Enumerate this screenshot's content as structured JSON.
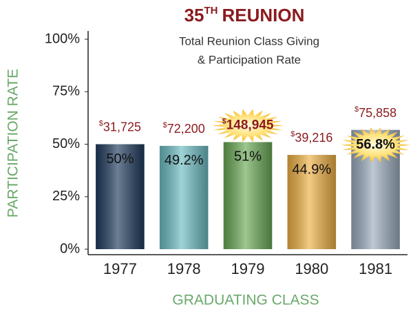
{
  "chart_data": {
    "type": "bar",
    "title_number": "35",
    "title_ordinal": "TH",
    "title_text": "REUNION",
    "subtitle": [
      "Total Reunion Class Giving",
      "& Participation Rate"
    ],
    "y_label": "PARTICIPATION RATE",
    "x_label": "GRADUATING CLASS",
    "categories": [
      "1977",
      "1978",
      "1979",
      "1980",
      "1981"
    ],
    "values": [
      50,
      49.2,
      51,
      44.9,
      56.8
    ],
    "value_labels": [
      "50%",
      "49.2%",
      "51%",
      "44.9%",
      "56.8%"
    ],
    "colors": [
      "#1e3a5c",
      "#6cbcc2",
      "#6aa955",
      "#eeb044",
      "#9aabbd"
    ],
    "giving": {
      "prefix": "$",
      "values": [
        31725,
        72200,
        148945,
        39216,
        75858
      ],
      "value_labels": [
        "31,725",
        "72,200",
        "148,945",
        "39,216",
        "75,858"
      ]
    },
    "highlight_giving": [
      2
    ],
    "highlight_rate": [
      4
    ],
    "ylim": [
      0,
      100
    ],
    "yticks": [
      {
        "value": 0,
        "label": "0%"
      },
      {
        "value": 25,
        "label": "25%"
      },
      {
        "value": 50,
        "label": "50%"
      },
      {
        "value": 75,
        "label": "75%"
      },
      {
        "value": 100,
        "label": "100%"
      }
    ],
    "grid": false
  }
}
